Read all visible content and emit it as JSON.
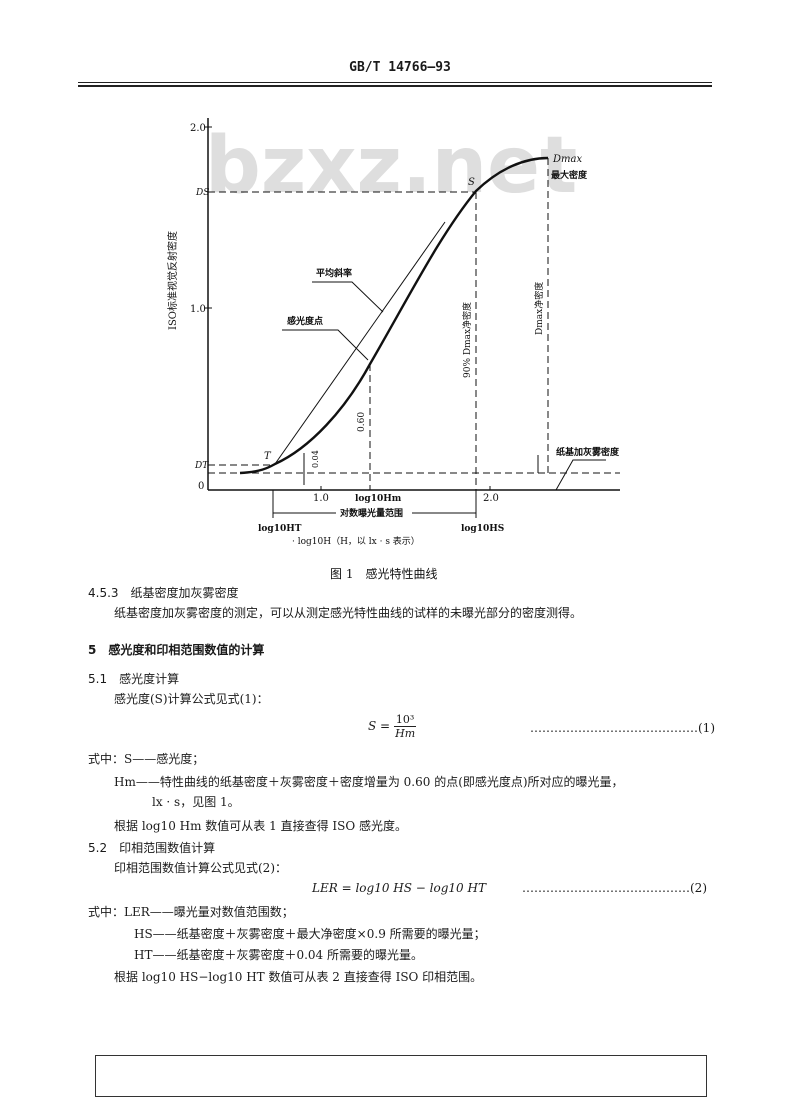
{
  "header": {
    "standard_no": "GB/T 14766—93"
  },
  "watermark": "bzxz.net",
  "figure": {
    "y_axis_title": "ISO标准视觉反射密度",
    "y_ticks": [
      "2.0",
      "1.0",
      "0"
    ],
    "x_ticks": [
      "1.0",
      "2.0"
    ],
    "label_DS": "DS",
    "label_DT": "DT",
    "label_S": "S",
    "label_T": "T",
    "label_Dmax": "Dmax",
    "label_max_density": "最大密度",
    "label_avg_slope": "平均斜率",
    "label_speed_point": "感光度点",
    "label_060": "0.60",
    "label_004": "0.04",
    "label_90pct": "90% Dmax净密度",
    "label_dmax_net": "Dmax净密度",
    "label_base_fog": "纸基加灰雾密度",
    "label_log_hm": "log10Hm",
    "label_log_ht": "log10HT",
    "label_log_hs": "log10HS",
    "label_range": "对数曝光量范围",
    "x_axis_title": "· log10H（H，以 lx · s 表示）",
    "caption": "图 1　感光特性曲线"
  },
  "body": {
    "s453_title": "4.5.3　纸基密度加灰雾密度",
    "s453_text": "纸基密度加灰雾密度的测定，可以从测定感光特性曲线的试样的未曝光部分的密度测得。",
    "s5_title": "5　感光度和印相范围数值的计算",
    "s51_title": "5.1　感光度计算",
    "s51_intro": "感光度(S)计算公式见式(1)：",
    "eq1_lhs": "S =",
    "eq1_num": "10³",
    "eq1_den": "Hm",
    "eq1_no": "……………………………………(1)",
    "where1_s": "式中：S——感光度；",
    "where1_hm": "Hm——特性曲线的纸基密度＋灰雾密度＋密度增量为 0.60 的点(即感光度点)所对应的曝光量，",
    "where1_hm_cont": "lx · s，见图 1。",
    "s51_note": "根据 log10 Hm 数值可从表 1 直接查得 ISO 感光度。",
    "s52_title": "5.2　印相范围数值计算",
    "s52_intro": "印相范围数值计算公式见式(2)：",
    "eq2": "LER = log10 HS − log10 HT",
    "eq2_no": "……………………………………(2)",
    "where2_ler": "式中：LER——曝光量对数值范围数；",
    "where2_hs": "HS——纸基密度＋灰雾密度＋最大净密度×0.9 所需要的曝光量；",
    "where2_ht": "HT——纸基密度＋灰雾密度＋0.04 所需要的曝光量。",
    "s52_note": "根据 log10 HS−log10 HT 数值可从表 2 直接查得 ISO 印相范围。"
  }
}
